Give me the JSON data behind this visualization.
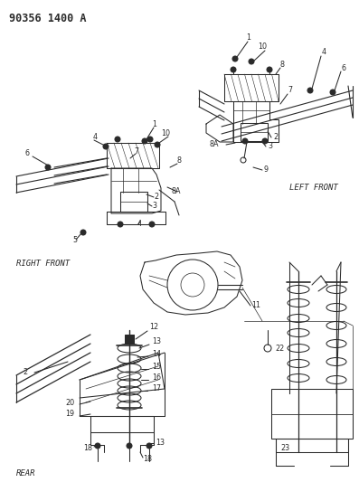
{
  "title": "90356 1400 A",
  "bg_color": "#ffffff",
  "line_color": "#2a2a2a",
  "text_color": "#2a2a2a",
  "section_labels": {
    "LEFT FRONT": [
      0.595,
      0.488
    ],
    "RIGHT FRONT": [
      0.03,
      0.435
    ],
    "REAR": [
      0.03,
      0.133
    ]
  },
  "label_fontsize": 6.5,
  "title_fontsize": 8.5,
  "part_fontsize": 5.8
}
